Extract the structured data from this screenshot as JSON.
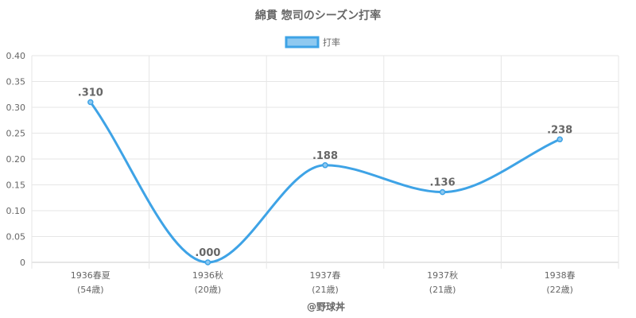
{
  "chart_data": {
    "type": "line",
    "title": "綿貫 惣司のシーズン打率",
    "series": [
      {
        "name": "打率",
        "values": [
          0.31,
          0.0,
          0.188,
          0.136,
          0.238
        ],
        "labels": [
          ".310",
          ".000",
          ".188",
          ".136",
          ".238"
        ]
      }
    ],
    "categories": [
      {
        "season": "1936春夏",
        "age": "(54歳)"
      },
      {
        "season": "1936秋",
        "age": "(20歳)"
      },
      {
        "season": "1937春",
        "age": "(21歳)"
      },
      {
        "season": "1937秋",
        "age": "(21歳)"
      },
      {
        "season": "1938春",
        "age": "(22歳)"
      }
    ],
    "yticks": [
      "0",
      "0.05",
      "0.10",
      "0.15",
      "0.20",
      "0.25",
      "0.30",
      "0.35",
      "0.40"
    ],
    "ylim": [
      0,
      0.4
    ],
    "legend_position": "top",
    "grid": true,
    "line_color": "#3ea3e6",
    "point_fill": "#8fc9f0"
  },
  "credit": "@野球丼"
}
